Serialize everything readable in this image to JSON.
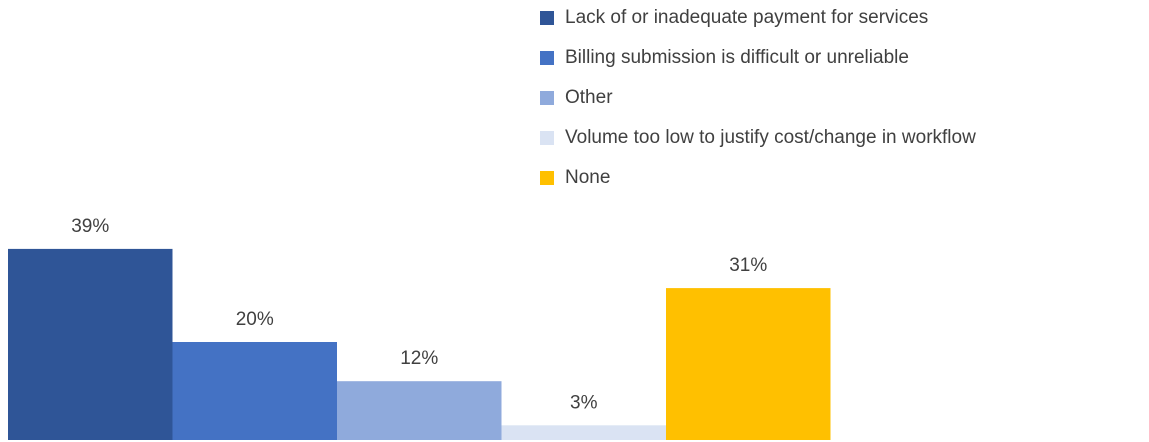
{
  "chart_data": {
    "type": "bar",
    "series": [
      {
        "name": "Lack of or inadequate payment for services",
        "color": "#2f5597",
        "values": [
          39
        ],
        "value_labels": [
          "39%"
        ]
      },
      {
        "name": "Billing submission is difficult or unreliable",
        "color": "#4472c4",
        "values": [
          20
        ],
        "value_labels": [
          "20%"
        ]
      },
      {
        "name": "Other",
        "color": "#8faadc",
        "values": [
          12
        ],
        "value_labels": [
          "12%"
        ]
      },
      {
        "name": "Volume too low to justify cost/change in workflow",
        "color": "#dae3f3",
        "values": [
          3
        ],
        "value_labels": [
          "3%"
        ]
      },
      {
        "name": "None",
        "color": "#ffc000",
        "values": [
          31
        ],
        "value_labels": [
          "31%"
        ]
      }
    ],
    "legend": "top-right"
  }
}
